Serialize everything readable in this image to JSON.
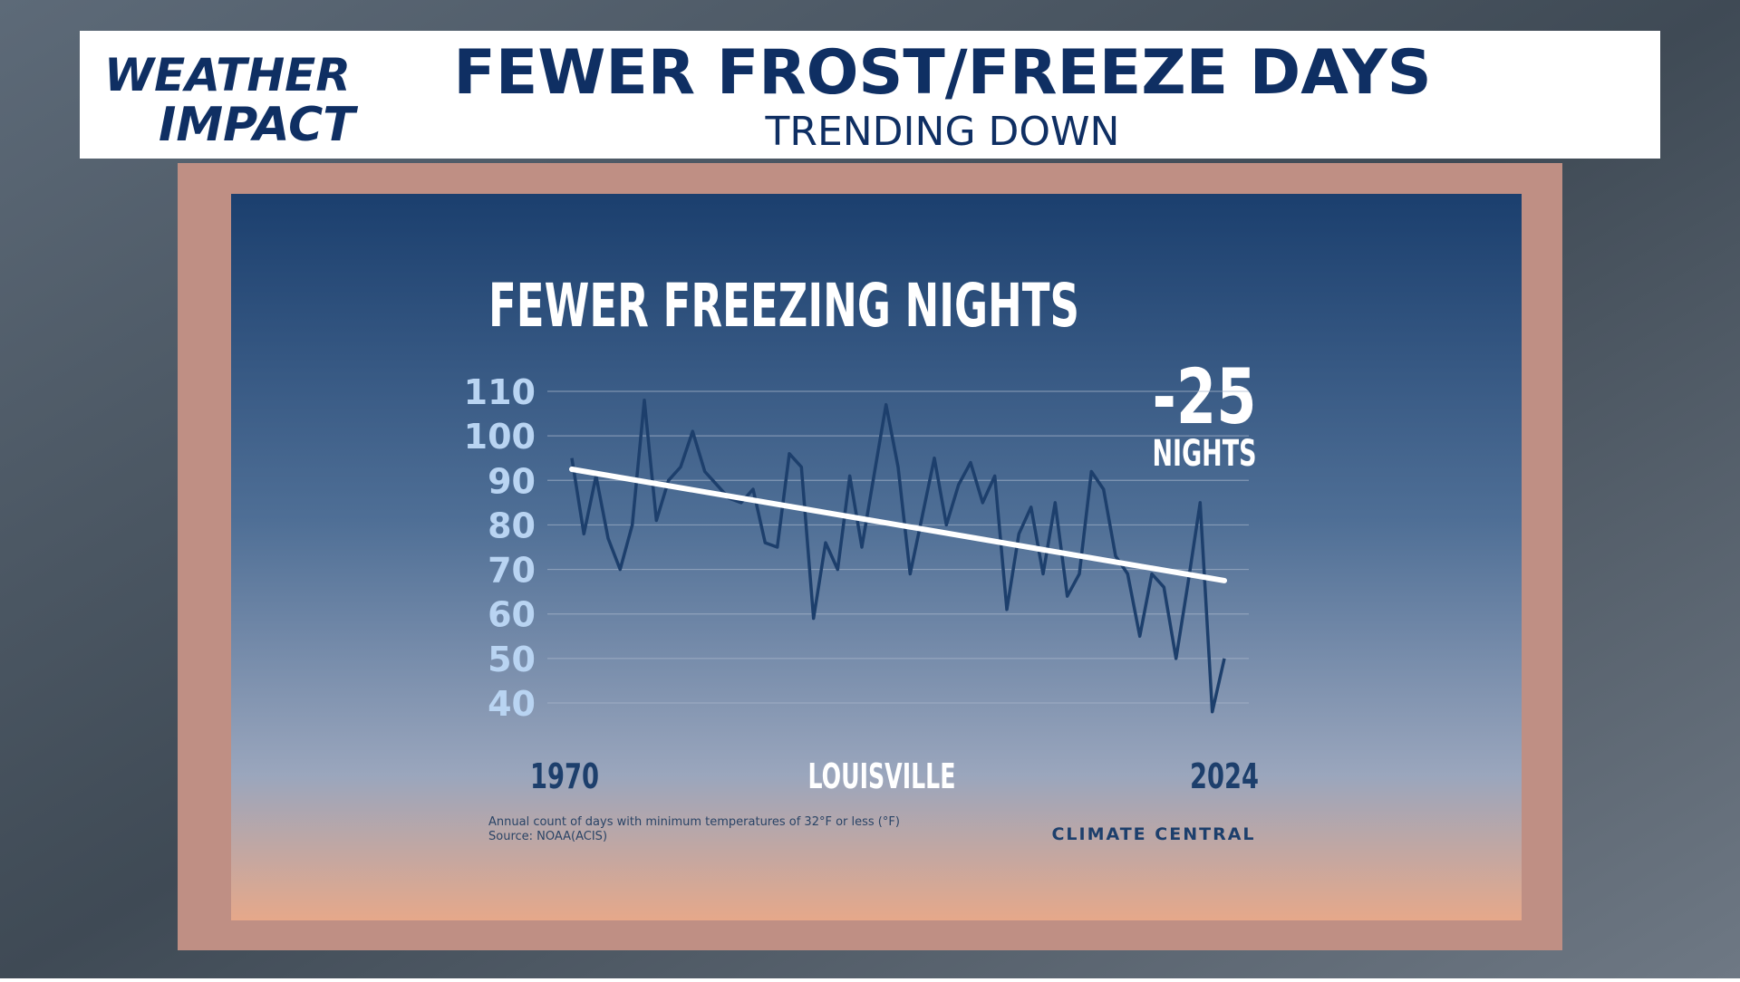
{
  "header": {
    "logo_top": "WEATHER",
    "logo_bottom": "IMPACT",
    "title": "FEWER FROST/FREEZE DAYS",
    "subtitle": "TRENDING DOWN"
  },
  "chart_data": {
    "type": "line",
    "title": "FEWER FREEZING NIGHTS",
    "annotation": {
      "value": "-25",
      "unit": "NIGHTS"
    },
    "location": "LOUISVILLE",
    "note": "Annual count of days with minimum temperatures of 32°F or less (°F)",
    "source": "Source: NOAA(ACIS)",
    "brand": "CLIMATE CENTRAL",
    "x": [
      1970,
      1971,
      1972,
      1973,
      1974,
      1975,
      1976,
      1977,
      1978,
      1979,
      1980,
      1981,
      1982,
      1983,
      1984,
      1985,
      1986,
      1987,
      1988,
      1989,
      1990,
      1991,
      1992,
      1993,
      1994,
      1995,
      1996,
      1997,
      1998,
      1999,
      2000,
      2001,
      2002,
      2003,
      2004,
      2005,
      2006,
      2007,
      2008,
      2009,
      2010,
      2011,
      2012,
      2013,
      2014,
      2015,
      2016,
      2017,
      2018,
      2019,
      2020,
      2021,
      2022,
      2023,
      2024
    ],
    "series": [
      {
        "color": "#1d3f6c",
        "values": [
          95,
          78,
          91,
          77,
          70,
          80,
          108,
          81,
          90,
          93,
          101,
          92,
          89,
          86,
          85,
          88,
          76,
          75,
          96,
          93,
          59,
          76,
          70,
          91,
          75,
          91,
          107,
          93,
          69,
          82,
          95,
          80,
          89,
          94,
          85,
          91,
          61,
          78,
          84,
          69,
          85,
          64,
          69,
          92,
          88,
          73,
          69,
          55,
          69,
          66,
          50,
          67,
          85,
          38,
          50
        ]
      }
    ],
    "trend": {
      "x": [
        1970,
        2024
      ],
      "values": [
        92.5,
        67.5
      ],
      "color": "#ffffff"
    },
    "xlim": [
      1970,
      2024
    ],
    "xticks": [
      1970,
      2024
    ],
    "ylim": [
      40,
      110
    ],
    "yticks": [
      40,
      50,
      60,
      70,
      80,
      90,
      100,
      110
    ],
    "grid": true
  }
}
